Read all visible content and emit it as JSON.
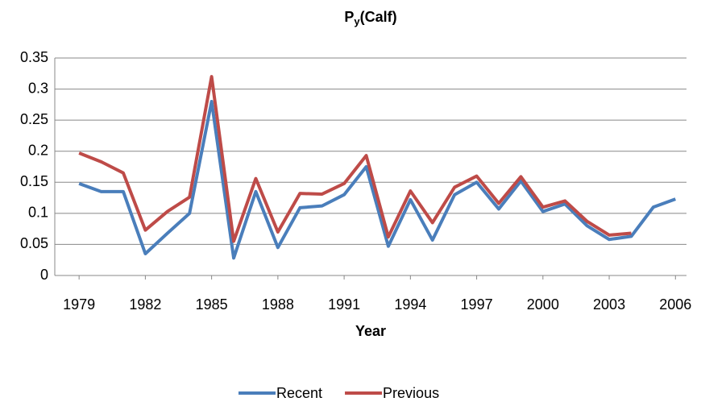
{
  "chart_data": {
    "type": "line",
    "title": {
      "main": "P",
      "subscript": "y",
      "suffix": "(Calf)"
    },
    "x_label": "Year",
    "x": [
      1979,
      1980,
      1981,
      1982,
      1983,
      1984,
      1985,
      1986,
      1987,
      1988,
      1989,
      1990,
      1991,
      1992,
      1993,
      1994,
      1995,
      1996,
      1997,
      1998,
      1999,
      2000,
      2001,
      2002,
      2003,
      2004,
      2005,
      2006
    ],
    "series": [
      {
        "name": "Recent",
        "color": "#4a7ebb",
        "values": [
          0.148,
          0.135,
          0.135,
          0.035,
          0.068,
          0.1,
          0.28,
          0.028,
          0.135,
          0.045,
          0.109,
          0.112,
          0.13,
          0.175,
          0.047,
          0.122,
          0.057,
          0.13,
          0.15,
          0.107,
          0.152,
          0.103,
          0.115,
          0.08,
          0.058,
          0.063,
          0.11,
          0.123
        ]
      },
      {
        "name": "Previous",
        "color": "#be4b48",
        "values": [
          0.197,
          0.183,
          0.165,
          0.073,
          0.103,
          0.126,
          0.32,
          0.055,
          0.156,
          0.07,
          0.132,
          0.131,
          0.148,
          0.193,
          0.062,
          0.136,
          0.085,
          0.142,
          0.16,
          0.116,
          0.159,
          0.11,
          0.12,
          0.087,
          0.065,
          0.068,
          null,
          null
        ]
      }
    ],
    "xlim": [
      1977.9,
      2006.5
    ],
    "xticks": [
      1979,
      1982,
      1985,
      1988,
      1991,
      1994,
      1997,
      2000,
      2003,
      2006
    ],
    "ylim": [
      0,
      0.35
    ],
    "yticks": [
      0,
      0.05,
      0.1,
      0.15,
      0.2,
      0.25,
      0.3,
      0.35
    ],
    "grid": true,
    "legend": "bottom"
  }
}
